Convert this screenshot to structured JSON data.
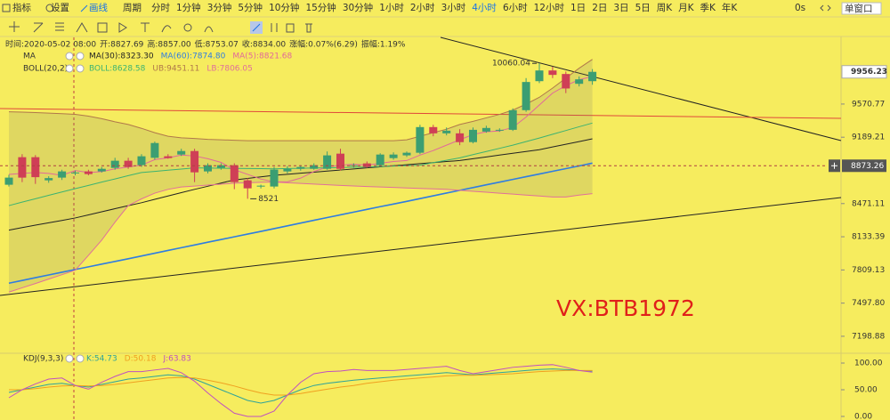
{
  "toolbar": {
    "tools": [
      "指标",
      "设置",
      "画线"
    ],
    "period_label": "周期",
    "periods": [
      "分时",
      "1分钟",
      "3分钟",
      "5分钟",
      "10分钟",
      "15分钟",
      "30分钟",
      "1小时",
      "2小时",
      "3小时",
      "4小时",
      "6小时",
      "12小时",
      "1日",
      "2日",
      "3日",
      "5日",
      "周K",
      "月K",
      "季K",
      "年K"
    ],
    "active_period": "4小时",
    "countdown": "0s",
    "window_mode": "单窗口"
  },
  "info_bar": [
    "时间:2020-05-02 08:00",
    "开:8827.69",
    "高:8857.00",
    "低:8753.07",
    "收:8834.00",
    "涨幅:0.07%(6.29)",
    "振幅:1.19%"
  ],
  "watermark": "VX:BTB1972",
  "chart_data": [
    {
      "type": "candlestick",
      "log_scale": true,
      "grid": false,
      "up_color": "#3b9e72",
      "down_color": "#cf3f56",
      "open": [
        8669,
        8967,
        8967,
        8716,
        8745,
        8792,
        8812,
        8812,
        8850,
        8928,
        8880,
        8960,
        8977,
        8996,
        9035,
        8812,
        8850,
        8879,
        8716,
        8650,
        8650,
        8812,
        8840,
        8840,
        8840,
        9006,
        8870,
        8899,
        8879,
        8957,
        8987,
        9016,
        9304,
        9233,
        9233,
        9134,
        9253,
        9263,
        9273,
        9499,
        9843,
        9973,
        9930,
        9811,
        9843
      ],
      "high": [
        8775,
        9000,
        8990,
        8760,
        8830,
        8820,
        8830,
        8860,
        8960,
        8960,
        9000,
        9140,
        9000,
        9060,
        9060,
        8900,
        8900,
        8900,
        8740,
        8670,
        8860,
        8870,
        8880,
        8900,
        9030,
        9060,
        8900,
        8920,
        9010,
        9020,
        9030,
        9330,
        9330,
        9300,
        9280,
        9300,
        9320,
        9290,
        9520,
        9880,
        10060.04,
        10020,
        9960,
        9900,
        9990
      ],
      "low": [
        8650,
        8697,
        8678,
        8690,
        8720,
        8770,
        8770,
        8800,
        8830,
        8840,
        8860,
        8940,
        8950,
        8980,
        8697,
        8790,
        8830,
        8622,
        8521,
        8630,
        8630,
        8790,
        8820,
        8830,
        8830,
        8820,
        8850,
        8850,
        8860,
        8940,
        8970,
        9000,
        9200,
        9210,
        9100,
        9120,
        9240,
        9250,
        9260,
        9480,
        9820,
        9880,
        9700,
        9780,
        9800
      ],
      "close": [
        8745,
        8745,
        8750,
        8740,
        8812,
        8800,
        8783,
        8840,
        8928,
        8860,
        8977,
        9124,
        8957,
        9035,
        8802,
        8879,
        8879,
        8697,
        8631,
        8659,
        8831,
        8840,
        8860,
        8879,
        8987,
        8840,
        8879,
        8860,
        8996,
        8996,
        9016,
        9304,
        9233,
        9263,
        9134,
        9273,
        9294,
        9273,
        9499,
        9833,
        9973,
        9919,
        9755,
        9865,
        9956.23
      ],
      "ylim": [
        7066,
        10386
      ],
      "yticks": [
        9570.77,
        9189.21,
        8471.11,
        8133.39,
        7809.13,
        {
          "value": 7497.8,
          "label": "7497.80"
        },
        7198.88
      ],
      "last_price": 9956.23,
      "crosshair_price": 8873.26,
      "indicators": [
        {
          "label": "MA",
          "series": [
            {
              "name": "MA(30):8323.30",
              "color": "#222222",
              "values": [
                8200,
                8225,
                8250,
                8274,
                8298,
                8323,
                8354,
                8386,
                8418,
                8449,
                8480,
                8515,
                8550,
                8585,
                8620,
                8653,
                8687,
                8720,
                8737,
                8753,
                8770,
                8781,
                8793,
                8804,
                8816,
                8827,
                8839,
                8850,
                8861,
                8873,
                8884,
                8896,
                8907,
                8919,
                8930,
                8950,
                8970,
                8990,
                9010,
                9030,
                9050,
                9080,
                9110,
                9140,
                9171
              ]
            },
            {
              "name": "MA(60):7874.80",
              "color": "#2f7de1",
              "values": [
                7683,
                7709,
                7735,
                7761,
                7787,
                7813,
                7839,
                7865,
                7891,
                7917,
                7944,
                7971,
                7998,
                8025,
                8052,
                8079,
                8106,
                8133,
                8160,
                8187,
                8215,
                8243,
                8271,
                8299,
                8327,
                8355,
                8383,
                8411,
                8439,
                8466,
                8494,
                8523,
                8552,
                8581,
                8610,
                8639,
                8668,
                8697,
                8726,
                8755,
                8784,
                8813,
                8842,
                8871,
                8902
              ]
            },
            {
              "name": "MA(5):8821.68",
              "color": "#e2689a",
              "values": [
                8780,
                8790,
                8800,
                8790,
                8770,
                8821,
                8800,
                8810,
                8840,
                8860,
                8880,
                8940,
                8960,
                8990,
                8980,
                8950,
                8910,
                8830,
                8780,
                8730,
                8700,
                8700,
                8740,
                8810,
                8860,
                8880,
                8890,
                8880,
                8900,
                8920,
                8930,
                8990,
                9040,
                9100,
                9160,
                9220,
                9250,
                9260,
                9300,
                9420,
                9560,
                9700,
                9790,
                9860,
                9900
              ]
            }
          ]
        },
        {
          "label": "BOLL(20,2)",
          "series": [
            {
              "name": "BOLL:8628.58",
              "color": "#3cb371",
              "values": [
                8450,
                8486,
                8521,
                8557,
                8592,
                8628,
                8662,
                8697,
                8731,
                8766,
                8800,
                8812,
                8825,
                8837,
                8850,
                8848,
                8847,
                8845,
                8843,
                8842,
                8840,
                8843,
                8846,
                8849,
                8851,
                8854,
                8857,
                8860,
                8865,
                8870,
                8875,
                8880,
                8907,
                8933,
                8960,
                8995,
                9030,
                9065,
                9100,
                9140,
                9180,
                9223,
                9265,
                9308,
                9350
              ]
            },
            {
              "name": "UB:9451.11",
              "color": "#b0784a",
              "values": [
                9480,
                9476,
                9471,
                9465,
                9458,
                9451,
                9430,
                9400,
                9365,
                9334,
                9290,
                9240,
                9200,
                9183,
                9175,
                9165,
                9160,
                9155,
                9150,
                9150,
                9150,
                9150,
                9150,
                9150,
                9150,
                9150,
                9150,
                9150,
                9150,
                9150,
                9160,
                9200,
                9240,
                9280,
                9334,
                9370,
                9410,
                9450,
                9500,
                9570,
                9650,
                9760,
                9880,
                10000,
                10110
              ]
            },
            {
              "name": "LB:7806.05",
              "color": "#e0709a",
              "values": [
                7600,
                7640,
                7680,
                7722,
                7764,
                7806,
                7950,
                8100,
                8280,
                8450,
                8520,
                8580,
                8620,
                8645,
                8655,
                8665,
                8675,
                8685,
                8690,
                8695,
                8697,
                8690,
                8683,
                8676,
                8669,
                8662,
                8656,
                8650,
                8645,
                8640,
                8635,
                8630,
                8625,
                8620,
                8610,
                8600,
                8590,
                8580,
                8570,
                8560,
                8550,
                8540,
                8540,
                8560,
                8575
              ]
            }
          ]
        }
      ]
    },
    {
      "type": "line",
      "title": "KDJ(9,3,3)",
      "ylim": [
        -6.7,
        116.7
      ],
      "yticks": [
        {
          "value": 100,
          "label": "100.00"
        },
        {
          "value": 50,
          "label": "50.00"
        },
        {
          "value": 0,
          "label": "0.00"
        }
      ],
      "series": [
        {
          "name": "K:54.73",
          "color": "#2fa39a",
          "values": [
            45,
            50,
            55,
            60,
            62,
            58,
            55,
            60,
            65,
            70,
            72,
            75,
            78,
            76,
            70,
            60,
            50,
            40,
            30,
            25,
            30,
            40,
            50,
            58,
            62,
            65,
            68,
            70,
            72,
            74,
            76,
            78,
            80,
            82,
            80,
            78,
            80,
            82,
            84,
            86,
            88,
            89,
            88,
            86,
            85
          ]
        },
        {
          "name": "D:50.18",
          "color": "#f0a020",
          "values": [
            50,
            50,
            52,
            55,
            57,
            58,
            57,
            58,
            60,
            63,
            66,
            69,
            72,
            73,
            72,
            68,
            63,
            57,
            50,
            44,
            40,
            40,
            43,
            47,
            51,
            55,
            58,
            62,
            65,
            68,
            70,
            72,
            74,
            76,
            77,
            77,
            78,
            79,
            80,
            82,
            84,
            85,
            86,
            86,
            86
          ]
        },
        {
          "name": "J:63.83",
          "color": "#c050c0",
          "values": [
            35,
            50,
            61,
            70,
            72,
            58,
            51,
            64,
            75,
            84,
            84,
            87,
            90,
            82,
            66,
            44,
            24,
            6,
            0,
            0,
            10,
            40,
            64,
            80,
            84,
            85,
            88,
            86,
            86,
            86,
            88,
            90,
            92,
            94,
            86,
            80,
            84,
            88,
            92,
            94,
            96,
            97,
            92,
            86,
            83
          ]
        }
      ]
    }
  ]
}
